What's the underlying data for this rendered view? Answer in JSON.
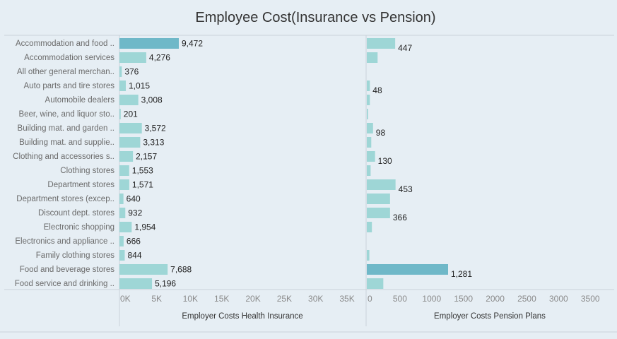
{
  "title": "Employee Cost(Insurance vs Pension)",
  "colors": {
    "bar": "#9ed6d6",
    "highlight": "#6fb8c8",
    "background": "#e6eef4"
  },
  "chart_data": [
    {
      "type": "bar",
      "orientation": "horizontal",
      "title": "",
      "xlabel": "Employer Costs Health Insurance",
      "xlim": [
        0,
        37000
      ],
      "ticks": [
        "0K",
        "5K",
        "10K",
        "15K",
        "20K",
        "25K",
        "30K",
        "35K"
      ],
      "tick_values": [
        0,
        5000,
        10000,
        15000,
        20000,
        25000,
        30000,
        35000
      ],
      "categories": [
        "Accommodation and food ..",
        "Accommodation services",
        "All other general merchan..",
        "Auto parts and tire stores",
        "Automobile dealers",
        "Beer, wine, and liquor sto..",
        "Building mat. and garden ..",
        "Building mat. and supplie..",
        "Clothing and accessories s..",
        "Clothing stores",
        "Department stores",
        "Department stores (excep..",
        "Discount dept. stores",
        "Electronic shopping",
        "Electronics and appliance ..",
        "Family clothing stores",
        "Food and beverage stores",
        "Food service and drinking .."
      ],
      "values": [
        9472,
        4276,
        376,
        1015,
        3008,
        201,
        3572,
        3313,
        2157,
        1553,
        1571,
        640,
        932,
        1954,
        666,
        844,
        7688,
        5196
      ],
      "labels": [
        "9,472",
        "4,276",
        "376",
        "1,015",
        "3,008",
        "201",
        "3,572",
        "3,313",
        "2,157",
        "1,553",
        "1,571",
        "640",
        "932",
        "1,954",
        "666",
        "844",
        "7,688",
        "5,196"
      ],
      "highlight_index": 0
    },
    {
      "type": "bar",
      "orientation": "horizontal",
      "title": "",
      "xlabel": "Employer Costs Pension Plans",
      "xlim": [
        0,
        3700
      ],
      "ticks": [
        "0",
        "500",
        "1000",
        "1500",
        "2000",
        "2500",
        "3000",
        "3500"
      ],
      "tick_values": [
        0,
        500,
        1000,
        1500,
        2000,
        2500,
        3000,
        3500
      ],
      "values": [
        447,
        170,
        0,
        48,
        48,
        20,
        98,
        70,
        130,
        60,
        453,
        366,
        366,
        80,
        0,
        40,
        1281,
        260
      ],
      "labels": [
        "447",
        "",
        "",
        "48",
        "",
        "",
        "98",
        "",
        "130",
        "",
        "453",
        "",
        "366",
        "",
        "",
        "",
        "1,281",
        ""
      ],
      "highlight_index": 16
    }
  ]
}
